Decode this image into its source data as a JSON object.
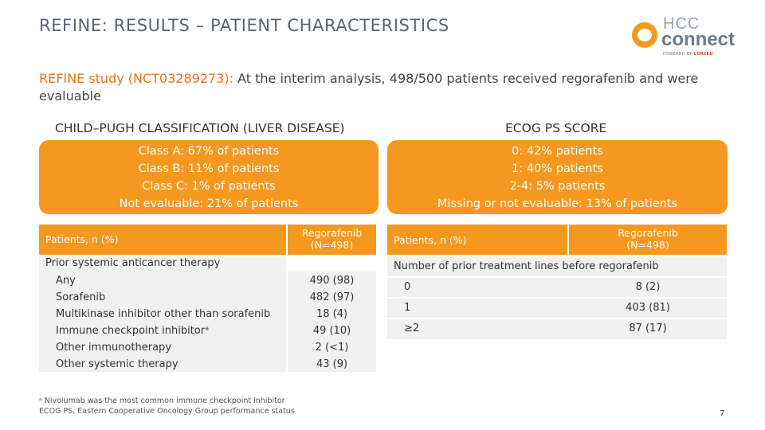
{
  "title": "REFINE: RESULTS – PATIENT CHARACTERISTICS",
  "logo": {
    "line1": "HCC",
    "line2": "connect",
    "powered_prefix": "POWERED BY ",
    "powered_brand": "COR2ED"
  },
  "intro": {
    "highlight": "REFINE study (NCT03289273):",
    "text": " At the interim analysis, 498/500 patients received regorafenib and were evaluable"
  },
  "left_panel": {
    "heading": "CHILD–PUGH CLASSIFICATION (LIVER DISEASE)",
    "lines": [
      "Class A: 67% of patients",
      "Class B: 11% of patients",
      "Class C: 1% of patients",
      "Not evaluable: 21% of patients"
    ]
  },
  "right_panel": {
    "heading": "ECOG PS SCORE",
    "lines": [
      "0: 42% patients",
      "1: 40% patients",
      "2-4: 5% patients",
      "Missing or not evaluable: 13% of patients"
    ]
  },
  "left_table": {
    "col1": "Patients, n (%)",
    "col2_line1": "Regorafenib",
    "col2_line2": "(N=498)",
    "section": "Prior systemic anticancer therapy",
    "rows": [
      {
        "label": "Any",
        "value": "490 (98)"
      },
      {
        "label": "Sorafenib",
        "value": "482 (97)"
      },
      {
        "label": "Multikinase inhibitor other than sorafenib",
        "value": "18 (4)"
      },
      {
        "label": "Immune checkpoint inhibitorᵃ",
        "value": "49 (10)"
      },
      {
        "label": "Other immunotherapy",
        "value": "2 (<1)"
      },
      {
        "label": "Other systemic therapy",
        "value": "43 (9)"
      }
    ]
  },
  "right_table": {
    "col1": "Patients, n (%)",
    "col2_line1": "Regorafenib",
    "col2_line2": "(N=498)",
    "section": "Number of prior treatment lines before regorafenib",
    "rows": [
      {
        "label": "0",
        "value": "8 (2)"
      },
      {
        "label": "1",
        "value": "403 (81)"
      },
      {
        "label": "≥2",
        "value": "87 (17)"
      }
    ]
  },
  "footnotes": [
    "ᵃ Nivolumab was the most common immune checkpoint inhibitor",
    "ECOG PS, Eastern Cooperative Oncology Group performance status"
  ],
  "page_number": "7",
  "colors": {
    "accent": "#f5981f",
    "title": "#5a6470",
    "highlight": "#e8731a",
    "row_bg": "#f1f1f1"
  }
}
